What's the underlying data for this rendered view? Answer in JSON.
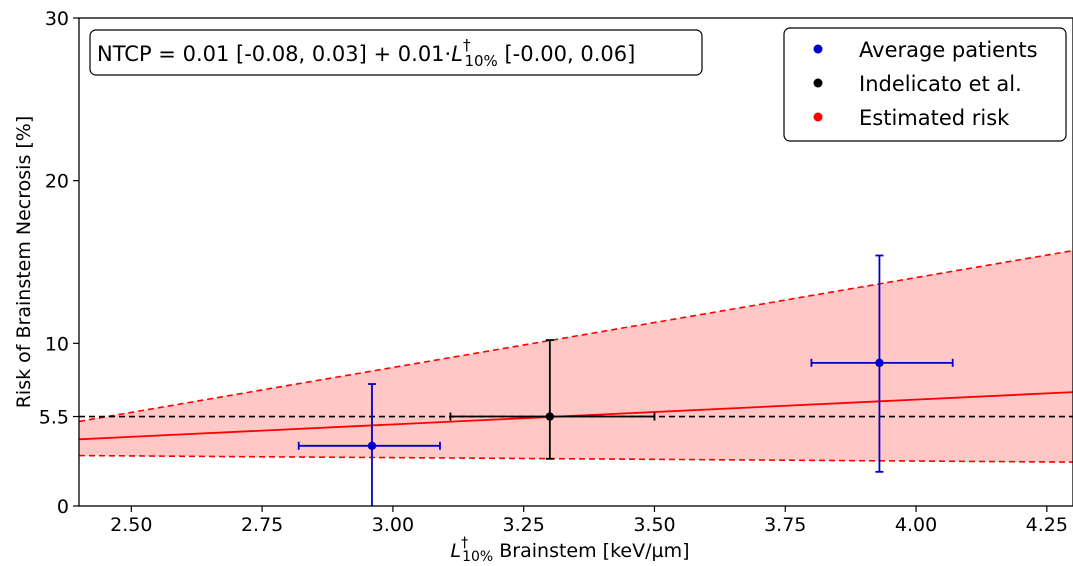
{
  "chart_data": {
    "type": "scatter",
    "xlim": [
      2.4,
      4.3
    ],
    "ylim": [
      0,
      30
    ],
    "x_ticks": [
      "2.50",
      "2.75",
      "3.00",
      "3.25",
      "3.50",
      "3.75",
      "4.00",
      "4.25"
    ],
    "x_tick_values": [
      2.5,
      2.75,
      3.0,
      3.25,
      3.5,
      3.75,
      4.0,
      4.25
    ],
    "y_ticks": [
      "0",
      "5.5",
      "10",
      "20",
      "30"
    ],
    "y_tick_values": [
      0,
      5.5,
      10,
      20,
      30
    ],
    "xlabel_prefix": "L",
    "xlabel_sup": "†",
    "xlabel_sub": "10%",
    "xlabel_suffix": " Brainstem [keV/µm]",
    "ylabel": "Risk of Brainstem Necrosis [%]",
    "annotation": {
      "prefix": "NTCP = 0.01 [-0.08, 0.03] + 0.01·",
      "var": "L",
      "sup": "†",
      "sub": "10%",
      "suffix": " [-0.00, 0.06]"
    },
    "legend": {
      "placement": "top-right",
      "entries": [
        {
          "label": "Average patients",
          "color": "#0000cc"
        },
        {
          "label": "Indelicato et al.",
          "color": "#000000"
        },
        {
          "label": "Estimated risk",
          "color": "#ff0000"
        }
      ]
    },
    "series": [
      {
        "name": "Average patients",
        "color": "#0000cc",
        "points": [
          {
            "x": 2.96,
            "y": 3.7,
            "xerr": [
              2.82,
              3.09
            ],
            "yerr": [
              0.0,
              7.5
            ]
          },
          {
            "x": 3.93,
            "y": 8.8,
            "xerr": [
              3.8,
              4.07
            ],
            "yerr": [
              2.1,
              15.4
            ]
          }
        ]
      },
      {
        "name": "Indelicato et al.",
        "color": "#000000",
        "points": [
          {
            "x": 3.3,
            "y": 5.5,
            "xerr": [
              3.11,
              3.5
            ],
            "yerr": [
              2.9,
              10.2
            ]
          }
        ]
      }
    ],
    "estimated_risk": {
      "color": "#ff0000",
      "band_color": "#ffc8c6",
      "center": [
        [
          2.4,
          4.1
        ],
        [
          4.3,
          7.0
        ]
      ],
      "upper": [
        [
          2.4,
          5.2
        ],
        [
          4.3,
          15.7
        ]
      ],
      "lower": [
        [
          2.4,
          3.1
        ],
        [
          4.3,
          2.7
        ]
      ]
    },
    "reference_line": {
      "y": 5.5,
      "color": "#000000",
      "style": "dashed"
    },
    "grid": false
  }
}
